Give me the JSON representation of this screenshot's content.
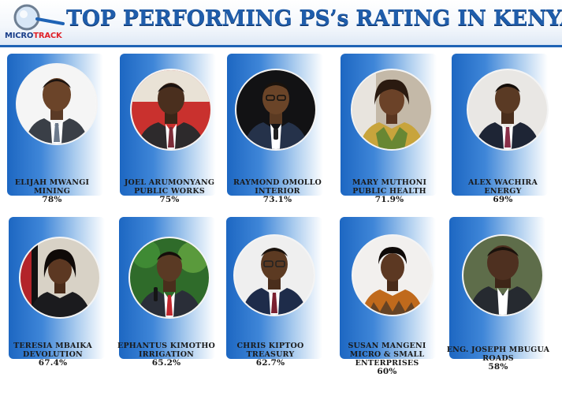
{
  "logo": {
    "brand_part1": "MICRO",
    "brand_part2": "TRACK"
  },
  "title": "TOP PERFORMING PS’s RATING IN KENYA",
  "people": [
    {
      "name": "ELIJAH MWANGI",
      "ministry": "MINING",
      "rating": "78%"
    },
    {
      "name": "JOEL ARUMONYANG",
      "ministry": "PUBLIC WORKS",
      "rating": "75%"
    },
    {
      "name": "RAYMOND OMOLLO",
      "ministry": "INTERIOR",
      "rating": "73.1%"
    },
    {
      "name": "MARY MUTHONI",
      "ministry": "PUBLIC HEALTH",
      "rating": "71.9%"
    },
    {
      "name": "ALEX WACHIRA",
      "ministry": "ENERGY",
      "rating": "69%"
    },
    {
      "name": "TERESIA MBAIKA",
      "ministry": "DEVOLUTION",
      "rating": "67.4%"
    },
    {
      "name": "EPHANTUS KIMOTHO",
      "ministry": "IRRIGATION",
      "rating": "65.2%"
    },
    {
      "name": "CHRIS KIPTOO",
      "ministry": "TREASURY",
      "rating": "62.7%"
    },
    {
      "name": "SUSAN MANGENI",
      "ministry": "MICRO & SMALL",
      "ministry_line2": "ENTERPRISES",
      "rating": "60%"
    },
    {
      "name": "ENG. JOSEPH MBUGUA",
      "ministry": "ROADS",
      "rating": "58%"
    }
  ],
  "colors": {
    "title_blue": "#1f5dab",
    "card_blue": "#1d67c2",
    "brand_red": "#e0232a"
  }
}
